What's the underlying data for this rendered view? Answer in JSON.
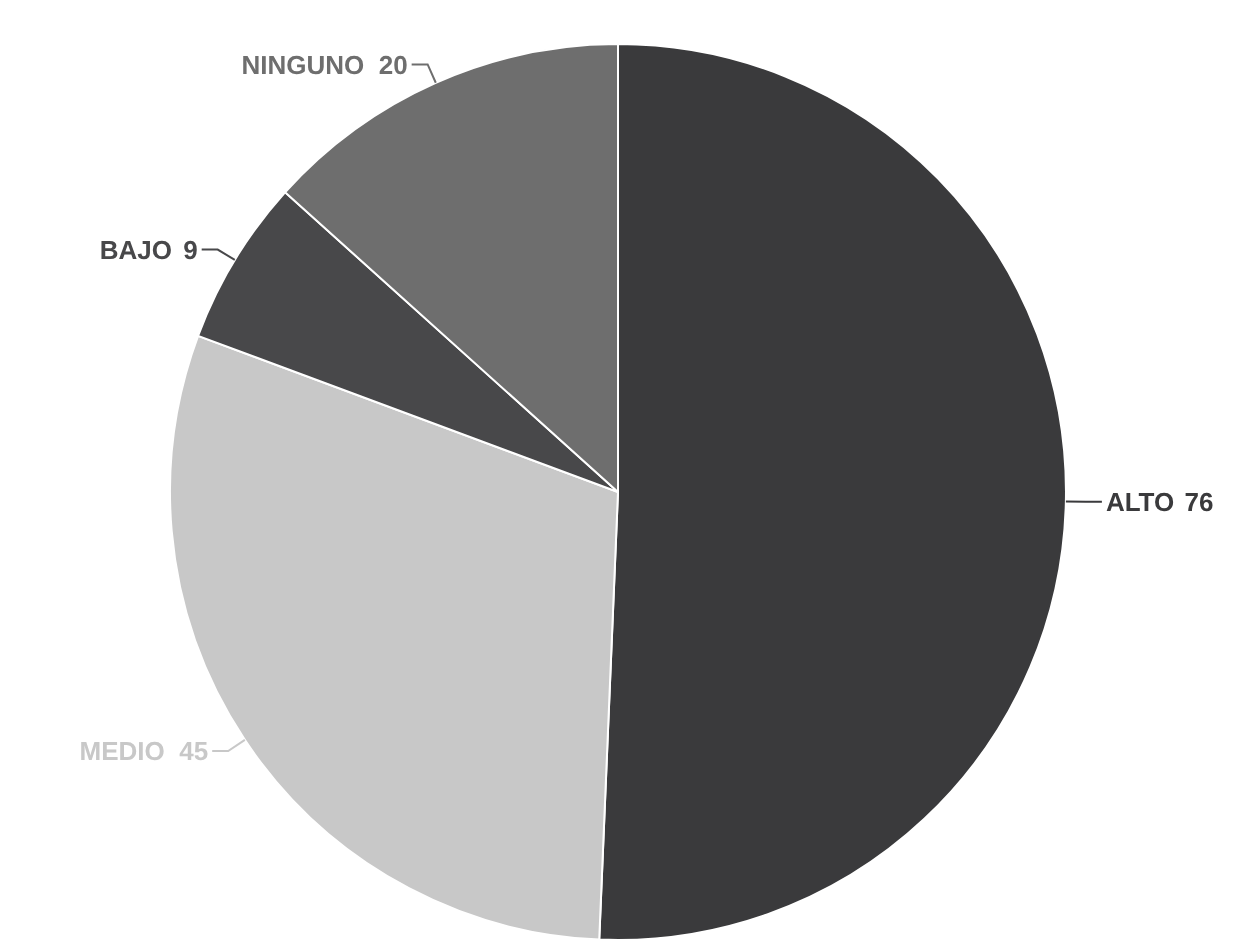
{
  "chart_data": {
    "type": "pie",
    "categories": [
      "ALTO",
      "MEDIO",
      "BAJO",
      "NINGUNO"
    ],
    "values": [
      76,
      45,
      9,
      20
    ],
    "colors": [
      "#3a3a3c",
      "#c8c8c8",
      "#48484a",
      "#6e6e6e"
    ],
    "data_labels": true
  }
}
